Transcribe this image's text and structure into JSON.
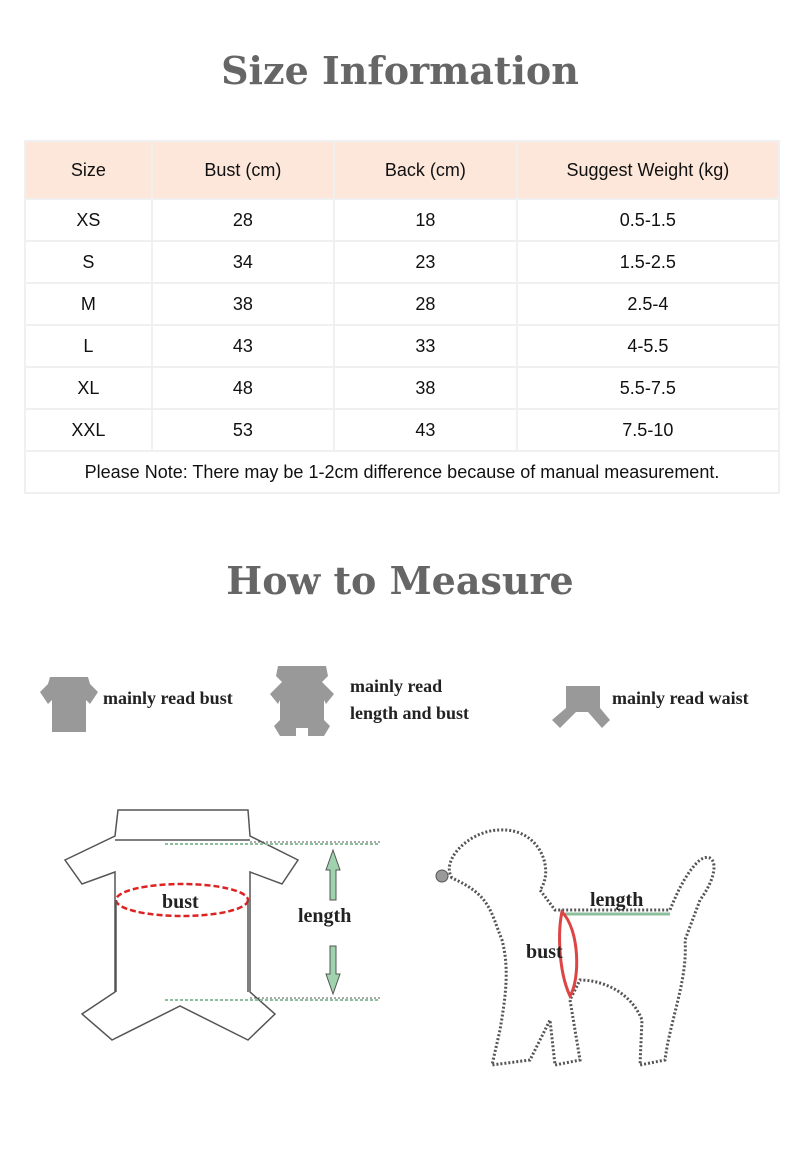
{
  "size_title": "Size Information",
  "table": {
    "headers": [
      "Size",
      "Bust (cm)",
      "Back (cm)",
      "Suggest Weight (kg)"
    ],
    "rows": [
      [
        "XS",
        "28",
        "18",
        "0.5-1.5"
      ],
      [
        "S",
        "34",
        "23",
        "1.5-2.5"
      ],
      [
        "M",
        "38",
        "28",
        "2.5-4"
      ],
      [
        "L",
        "43",
        "33",
        "4-5.5"
      ],
      [
        "XL",
        "48",
        "38",
        "5.5-7.5"
      ],
      [
        "XXL",
        "53",
        "43",
        "7.5-10"
      ]
    ],
    "note": "Please Note: There may be 1-2cm difference because of manual measurement.",
    "header_color": "#fde7da"
  },
  "measure_title": "How to Measure",
  "garment_types": [
    {
      "icon": "shirt-icon",
      "label": "mainly read bust"
    },
    {
      "icon": "jumpsuit-icon",
      "label_line1": "mainly read",
      "label_line2": "length and bust"
    },
    {
      "icon": "pants-icon",
      "label": "mainly read waist"
    }
  ],
  "diagrams": {
    "garment": {
      "bust_label": "bust",
      "length_label": "length"
    },
    "dog": {
      "length_label": "length",
      "bust_label": "bust"
    }
  }
}
